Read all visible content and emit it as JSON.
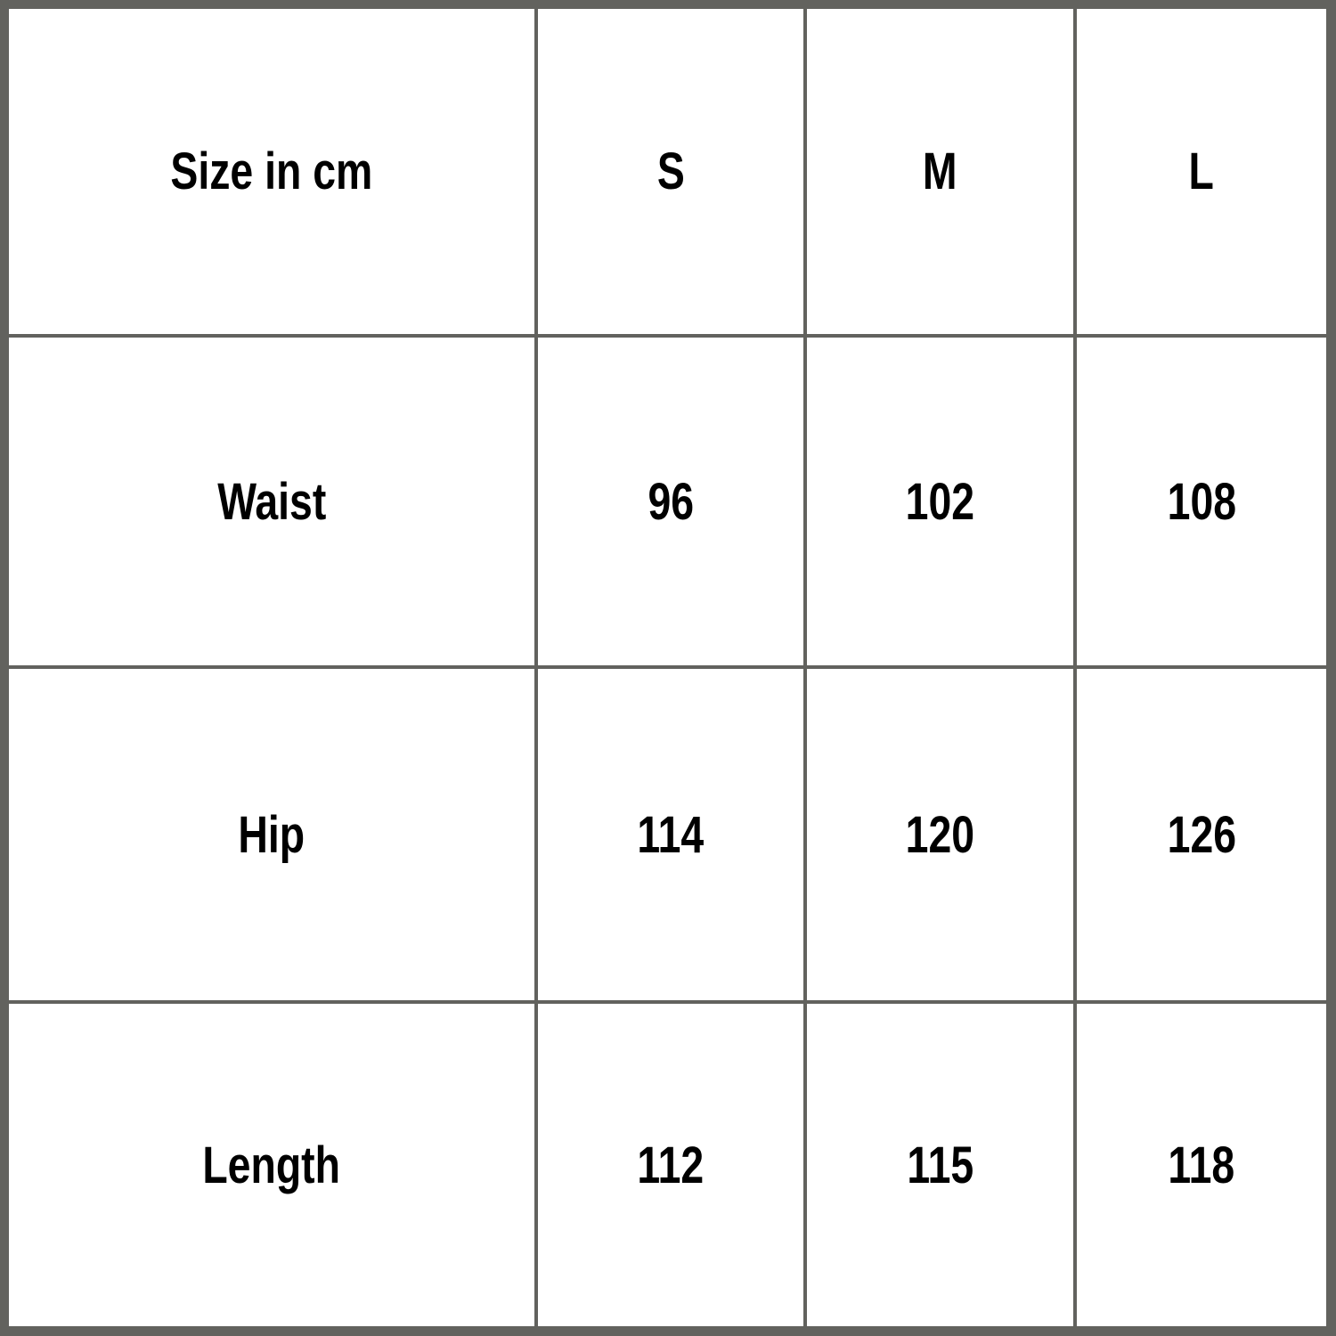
{
  "table": {
    "header": [
      "Size in cm",
      "S",
      "M",
      "L"
    ],
    "rows": [
      [
        "Waist",
        "96",
        "102",
        "108"
      ],
      [
        "Hip",
        "114",
        "120",
        "126"
      ],
      [
        "Length",
        "112",
        "115",
        "118"
      ]
    ]
  },
  "colors": {
    "border": "#62625e",
    "background": "#ffffff",
    "text": "#000000"
  }
}
